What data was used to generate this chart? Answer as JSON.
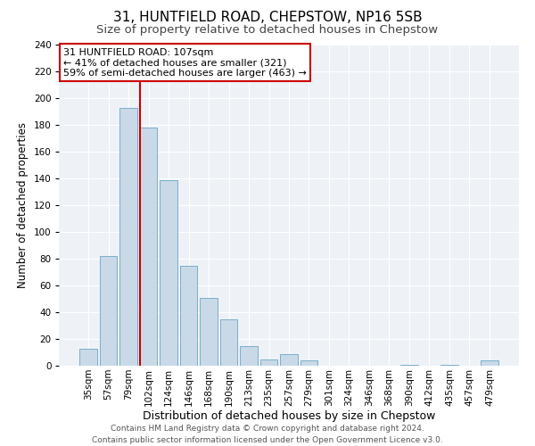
{
  "title": "31, HUNTFIELD ROAD, CHEPSTOW, NP16 5SB",
  "subtitle": "Size of property relative to detached houses in Chepstow",
  "xlabel": "Distribution of detached houses by size in Chepstow",
  "ylabel": "Number of detached properties",
  "bar_labels": [
    "35sqm",
    "57sqm",
    "79sqm",
    "102sqm",
    "124sqm",
    "146sqm",
    "168sqm",
    "190sqm",
    "213sqm",
    "235sqm",
    "257sqm",
    "279sqm",
    "301sqm",
    "324sqm",
    "346sqm",
    "368sqm",
    "390sqm",
    "412sqm",
    "435sqm",
    "457sqm",
    "479sqm"
  ],
  "bar_values": [
    13,
    82,
    193,
    178,
    139,
    75,
    51,
    35,
    15,
    5,
    9,
    4,
    0,
    0,
    0,
    0,
    1,
    0,
    1,
    0,
    4
  ],
  "bar_color": "#c9d9e8",
  "bar_edge_color": "#7baecb",
  "vline_index": 3,
  "vline_color": "#cc0000",
  "annotation_title": "31 HUNTFIELD ROAD: 107sqm",
  "annotation_line1": "← 41% of detached houses are smaller (321)",
  "annotation_line2": "59% of semi-detached houses are larger (463) →",
  "annotation_box_edge": "#cc0000",
  "bg_color": "#eef2f7",
  "grid_color": "#ffffff",
  "ylim": [
    0,
    240
  ],
  "yticks": [
    0,
    20,
    40,
    60,
    80,
    100,
    120,
    140,
    160,
    180,
    200,
    220,
    240
  ],
  "footer_line1": "Contains HM Land Registry data © Crown copyright and database right 2024.",
  "footer_line2": "Contains public sector information licensed under the Open Government Licence v3.0.",
  "title_fontsize": 11,
  "subtitle_fontsize": 9.5,
  "xlabel_fontsize": 9,
  "ylabel_fontsize": 8.5,
  "tick_fontsize": 7.5,
  "annotation_fontsize": 8,
  "footer_fontsize": 6.5
}
